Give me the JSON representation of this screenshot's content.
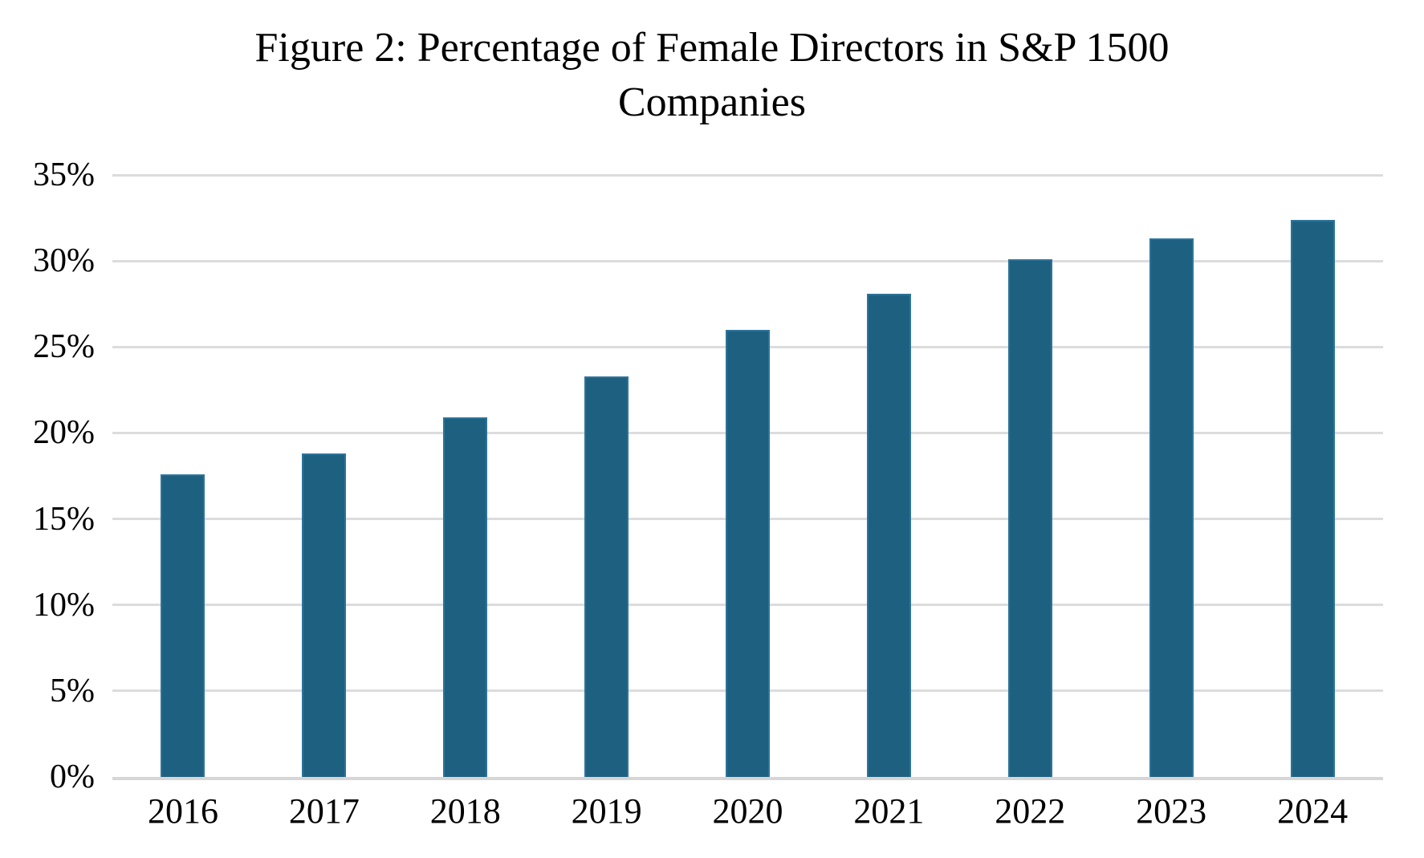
{
  "header": {
    "line1": "Figure 2: Percentage of Female Directors in S&P 1500",
    "line2": "Companies"
  },
  "chart_data": {
    "type": "bar",
    "title": "Figure 2: Percentage of Female Directors in S&P 1500 Companies",
    "categories": [
      "2016",
      "2017",
      "2018",
      "2019",
      "2020",
      "2021",
      "2022",
      "2023",
      "2024"
    ],
    "values": [
      17.6,
      18.8,
      20.9,
      23.3,
      26.0,
      28.1,
      30.1,
      31.3,
      32.4
    ],
    "xlabel": "",
    "ylabel": "",
    "ylim": [
      0,
      35
    ],
    "ytick_step": 5,
    "ytick_labels": [
      "0%",
      "5%",
      "10%",
      "15%",
      "20%",
      "25%",
      "30%",
      "35%"
    ],
    "grid": true,
    "legend_position": "none",
    "bar_color": "#1e6080",
    "bar_border_color": "#2d749a",
    "gridline_color": "#dcdcdc",
    "axis_line_color": "#d6d6d6",
    "title_color": "#000000",
    "tick_label_color": "#000000"
  }
}
